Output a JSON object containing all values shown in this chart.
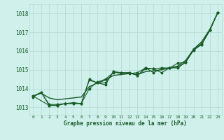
{
  "title": "Graphe pression niveau de la mer (hPa)",
  "bg_color": "#cff0eb",
  "grid_color": "#b8ddd8",
  "line_color": "#1a5c2a",
  "text_color": "#1a5c2a",
  "xlim": [
    -0.5,
    23.5
  ],
  "ylim": [
    1012.6,
    1018.5
  ],
  "yticks": [
    1013,
    1014,
    1015,
    1016,
    1017,
    1018
  ],
  "xticks": [
    0,
    1,
    2,
    3,
    4,
    5,
    6,
    7,
    8,
    9,
    10,
    11,
    12,
    13,
    14,
    15,
    16,
    17,
    18,
    19,
    20,
    21,
    22,
    23
  ],
  "series": [
    {
      "x": [
        0,
        1,
        2,
        3,
        4,
        5,
        6,
        7,
        8,
        9,
        10,
        11,
        12,
        13,
        14,
        15,
        16,
        17,
        18,
        19,
        20,
        21,
        22,
        23
      ],
      "y": [
        1013.6,
        1013.75,
        1013.5,
        1013.4,
        1013.45,
        1013.5,
        1013.55,
        1014.1,
        1014.3,
        1014.45,
        1014.7,
        1014.75,
        1014.8,
        1014.75,
        1014.9,
        1014.95,
        1015.0,
        1015.1,
        1015.2,
        1015.5,
        1016.1,
        1016.5,
        1017.15,
        1018.05
      ],
      "marker": false,
      "linewidth": 1.0
    },
    {
      "x": [
        0,
        1,
        2,
        3,
        4,
        5,
        6,
        7,
        8,
        9,
        10,
        11,
        12,
        13,
        14,
        15,
        16,
        17,
        18,
        19,
        20,
        21,
        22,
        23
      ],
      "y": [
        1013.6,
        1013.8,
        1013.1,
        1013.1,
        1013.2,
        1013.2,
        1013.2,
        1014.45,
        1014.3,
        1014.2,
        1014.9,
        1014.8,
        1014.85,
        1014.7,
        1015.05,
        1015.05,
        1014.85,
        1015.1,
        1015.1,
        1015.4,
        1016.1,
        1016.35,
        1017.1,
        1018.05
      ],
      "marker": true,
      "linewidth": 0.8
    },
    {
      "x": [
        0,
        1,
        2,
        3,
        4,
        5,
        6,
        7,
        8,
        9,
        10,
        11,
        12,
        13,
        14,
        15,
        16,
        17,
        18,
        19,
        20,
        21,
        22,
        23
      ],
      "y": [
        1013.55,
        1013.8,
        1013.15,
        1013.15,
        1013.2,
        1013.25,
        1013.2,
        1014.0,
        1014.35,
        1014.5,
        1014.85,
        1014.85,
        1014.85,
        1014.7,
        1015.1,
        1014.85,
        1015.05,
        1015.1,
        1015.15,
        1015.4,
        1016.1,
        1016.4,
        1017.1,
        1018.05
      ],
      "marker": true,
      "linewidth": 0.8
    },
    {
      "x": [
        0,
        2,
        3,
        4,
        5,
        6,
        7,
        8,
        9,
        10,
        11,
        12,
        13,
        14,
        15,
        16,
        17,
        18,
        19,
        20,
        21,
        22,
        23
      ],
      "y": [
        1013.6,
        1013.1,
        1013.1,
        1013.2,
        1013.2,
        1013.2,
        1014.5,
        1014.3,
        1014.3,
        1014.9,
        1014.85,
        1014.8,
        1014.85,
        1015.1,
        1015.05,
        1015.1,
        1015.1,
        1015.35,
        1015.4,
        1016.05,
        1016.35,
        1017.1,
        1018.05
      ],
      "marker": true,
      "linewidth": 0.8
    }
  ]
}
